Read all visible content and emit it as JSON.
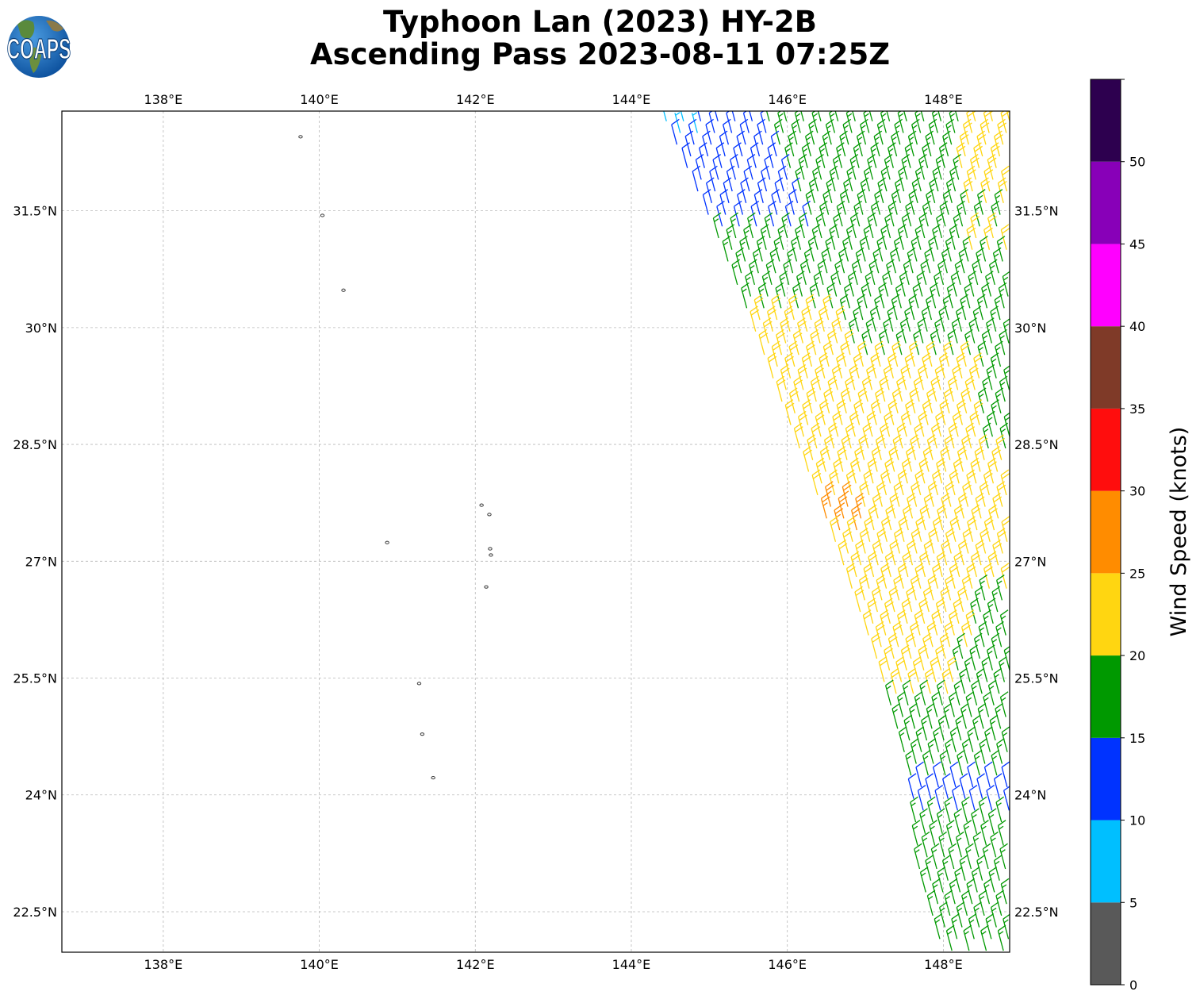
{
  "header": {
    "title_line1": "Typhoon Lan (2023) HY-2B",
    "title_line2": "Ascending Pass 2023-08-11 07:25Z",
    "logo_text": "COAPS"
  },
  "map": {
    "lon_range": [
      136.7,
      148.85
    ],
    "lat_range": [
      21.98,
      32.78
    ],
    "lon_ticks": [
      138,
      140,
      142,
      144,
      146,
      148
    ],
    "lon_tick_labels": [
      "138°E",
      "140°E",
      "142°E",
      "144°E",
      "146°E",
      "148°E"
    ],
    "lat_ticks": [
      22.5,
      24,
      25.5,
      27,
      28.5,
      30,
      31.5
    ],
    "lat_tick_labels": [
      "22.5°N",
      "24°N",
      "25.5°N",
      "27°N",
      "28.5°N",
      "30°N",
      "31.5°N"
    ],
    "grid": true,
    "islands": [
      {
        "lon": 139.76,
        "lat": 32.45
      },
      {
        "lon": 140.04,
        "lat": 31.44
      },
      {
        "lon": 140.31,
        "lat": 30.48
      },
      {
        "lon": 142.08,
        "lat": 27.72
      },
      {
        "lon": 142.18,
        "lat": 27.6
      },
      {
        "lon": 140.87,
        "lat": 27.24
      },
      {
        "lon": 142.19,
        "lat": 27.16
      },
      {
        "lon": 142.2,
        "lat": 27.08
      },
      {
        "lon": 142.14,
        "lat": 26.67
      },
      {
        "lon": 141.28,
        "lat": 25.43
      },
      {
        "lon": 141.32,
        "lat": 24.78
      },
      {
        "lon": 141.46,
        "lat": 24.22
      }
    ]
  },
  "colorbar": {
    "label": "Wind Speed (knots)",
    "ticks": [
      0,
      5,
      10,
      15,
      20,
      25,
      30,
      35,
      40,
      45,
      50
    ],
    "bins": [
      {
        "min": 0,
        "max": 5,
        "color": "#595959"
      },
      {
        "min": 5,
        "max": 10,
        "color": "#00bfff"
      },
      {
        "min": 10,
        "max": 15,
        "color": "#0033ff"
      },
      {
        "min": 15,
        "max": 20,
        "color": "#009900"
      },
      {
        "min": 20,
        "max": 25,
        "color": "#ffd611"
      },
      {
        "min": 25,
        "max": 30,
        "color": "#ff8c00"
      },
      {
        "min": 30,
        "max": 35,
        "color": "#ff0d0d"
      },
      {
        "min": 35,
        "max": 40,
        "color": "#7f3a28"
      },
      {
        "min": 40,
        "max": 45,
        "color": "#ff00ff"
      },
      {
        "min": 45,
        "max": 50,
        "color": "#8800b8"
      },
      {
        "min": 50,
        "max": 55,
        "color": "#2d004f"
      }
    ]
  },
  "chart_data": {
    "type": "wind_barbs",
    "swath": {
      "west_edge": [
        [
          144.45,
          32.65
        ],
        [
          145.1,
          31.2
        ],
        [
          145.5,
          30.2
        ],
        [
          146.1,
          28.6
        ],
        [
          146.6,
          27.3
        ],
        [
          147.2,
          25.6
        ],
        [
          147.6,
          24.2
        ],
        [
          147.7,
          23.0
        ],
        [
          148.0,
          22.0
        ]
      ],
      "east_edge_lon": 148.85,
      "lat_top": 32.65,
      "lat_bottom": 22.0,
      "row_step_lat": 0.15,
      "col_step_lon": 0.22
    },
    "wind_direction_from_deg": 345,
    "speed_regions_knots": [
      {
        "area": "northwest corner",
        "speed": 8
      },
      {
        "area": "northwest",
        "speed": 12
      },
      {
        "area": "north",
        "speed": 17
      },
      {
        "area": "north, far east",
        "speed": 22
      },
      {
        "area": "central",
        "speed": 22
      },
      {
        "area": "central, near 146.5E 27.5N",
        "speed": 27
      },
      {
        "area": "south",
        "speed": 17
      },
      {
        "area": "south, near 24N",
        "speed": 13
      }
    ]
  }
}
